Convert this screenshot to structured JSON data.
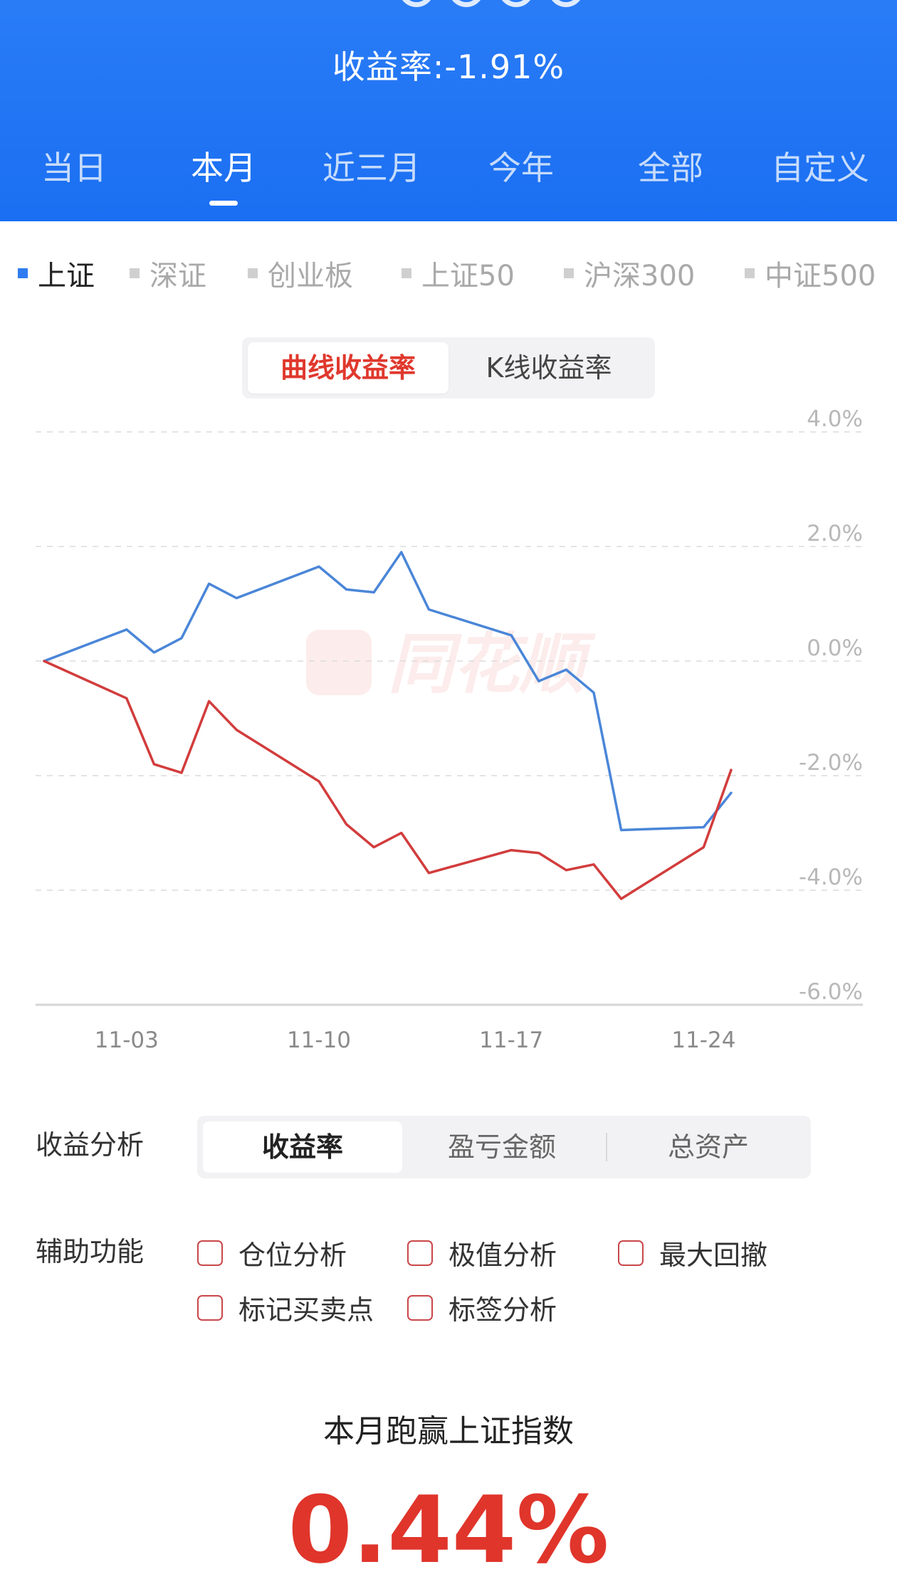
{
  "header": {
    "yield_text": "收益率:-1.91%",
    "tabs": [
      {
        "label": "当日"
      },
      {
        "label": "本月"
      },
      {
        "label": "近三月"
      },
      {
        "label": "今年"
      },
      {
        "label": "全部"
      },
      {
        "label": "自定义"
      }
    ],
    "active_tab": "本月"
  },
  "index_legend": {
    "items": [
      {
        "label": "上证"
      },
      {
        "label": "深证"
      },
      {
        "label": "创业板"
      },
      {
        "label": "上证50"
      },
      {
        "label": "沪深300"
      },
      {
        "label": "中证500"
      }
    ],
    "active": "上证",
    "active_color": "#2e7cf0"
  },
  "chart_toggle": {
    "options": [
      {
        "label": "曲线收益率"
      },
      {
        "label": "K线收益率"
      }
    ],
    "active": "曲线收益率"
  },
  "chart_data": {
    "type": "line",
    "y_ticks": [
      "4.0%",
      "2.0%",
      "0.0%",
      "-2.0%",
      "-4.0%",
      "-6.0%"
    ],
    "x_ticks": [
      "11-03",
      "11-10",
      "11-17",
      "11-24"
    ],
    "ylim": [
      -6,
      4
    ],
    "grid": true,
    "watermark": "同花顺",
    "series": [
      {
        "color": "#4a86d8",
        "points": [
          {
            "x": "10-31",
            "y": 0.0
          },
          {
            "x": "11-03",
            "y": 0.55
          },
          {
            "x": "11-04",
            "y": 0.15
          },
          {
            "x": "11-05",
            "y": 0.4
          },
          {
            "x": "11-06",
            "y": 1.35
          },
          {
            "x": "11-07",
            "y": 1.1
          },
          {
            "x": "11-10",
            "y": 1.65
          },
          {
            "x": "11-11",
            "y": 1.25
          },
          {
            "x": "11-12",
            "y": 1.2
          },
          {
            "x": "11-13",
            "y": 1.9
          },
          {
            "x": "11-14",
            "y": 0.9
          },
          {
            "x": "11-17",
            "y": 0.45
          },
          {
            "x": "11-18",
            "y": -0.35
          },
          {
            "x": "11-19",
            "y": -0.15
          },
          {
            "x": "11-20",
            "y": -0.55
          },
          {
            "x": "11-21",
            "y": -2.95
          },
          {
            "x": "11-24",
            "y": -2.9
          },
          {
            "x": "11-25",
            "y": -2.3
          }
        ]
      },
      {
        "color": "#d23c3c",
        "points": [
          {
            "x": "10-31",
            "y": 0.0
          },
          {
            "x": "11-03",
            "y": -0.65
          },
          {
            "x": "11-04",
            "y": -1.8
          },
          {
            "x": "11-05",
            "y": -1.95
          },
          {
            "x": "11-06",
            "y": -0.7
          },
          {
            "x": "11-07",
            "y": -1.2
          },
          {
            "x": "11-10",
            "y": -2.1
          },
          {
            "x": "11-11",
            "y": -2.85
          },
          {
            "x": "11-12",
            "y": -3.25
          },
          {
            "x": "11-13",
            "y": -3.0
          },
          {
            "x": "11-14",
            "y": -3.7
          },
          {
            "x": "11-17",
            "y": -3.3
          },
          {
            "x": "11-18",
            "y": -3.35
          },
          {
            "x": "11-19",
            "y": -3.65
          },
          {
            "x": "11-20",
            "y": -3.55
          },
          {
            "x": "11-21",
            "y": -4.15
          },
          {
            "x": "11-24",
            "y": -3.25
          },
          {
            "x": "11-25",
            "y": -1.9
          }
        ]
      }
    ]
  },
  "analysis": {
    "label": "收益分析",
    "options": [
      {
        "label": "收益率"
      },
      {
        "label": "盈亏金额"
      },
      {
        "label": "总资产"
      }
    ],
    "active": "收益率"
  },
  "aux": {
    "label": "辅助功能",
    "checkbox_color": "#c8474a",
    "options": [
      {
        "label": "仓位分析",
        "checked": false
      },
      {
        "label": "极值分析",
        "checked": false
      },
      {
        "label": "最大回撤",
        "checked": false
      },
      {
        "label": "标记买卖点",
        "checked": false
      },
      {
        "label": "标签分析",
        "checked": false
      }
    ]
  },
  "summary": {
    "title": "本月跑赢上证指数",
    "value": "0.44%",
    "value_color": "#e0352b"
  }
}
